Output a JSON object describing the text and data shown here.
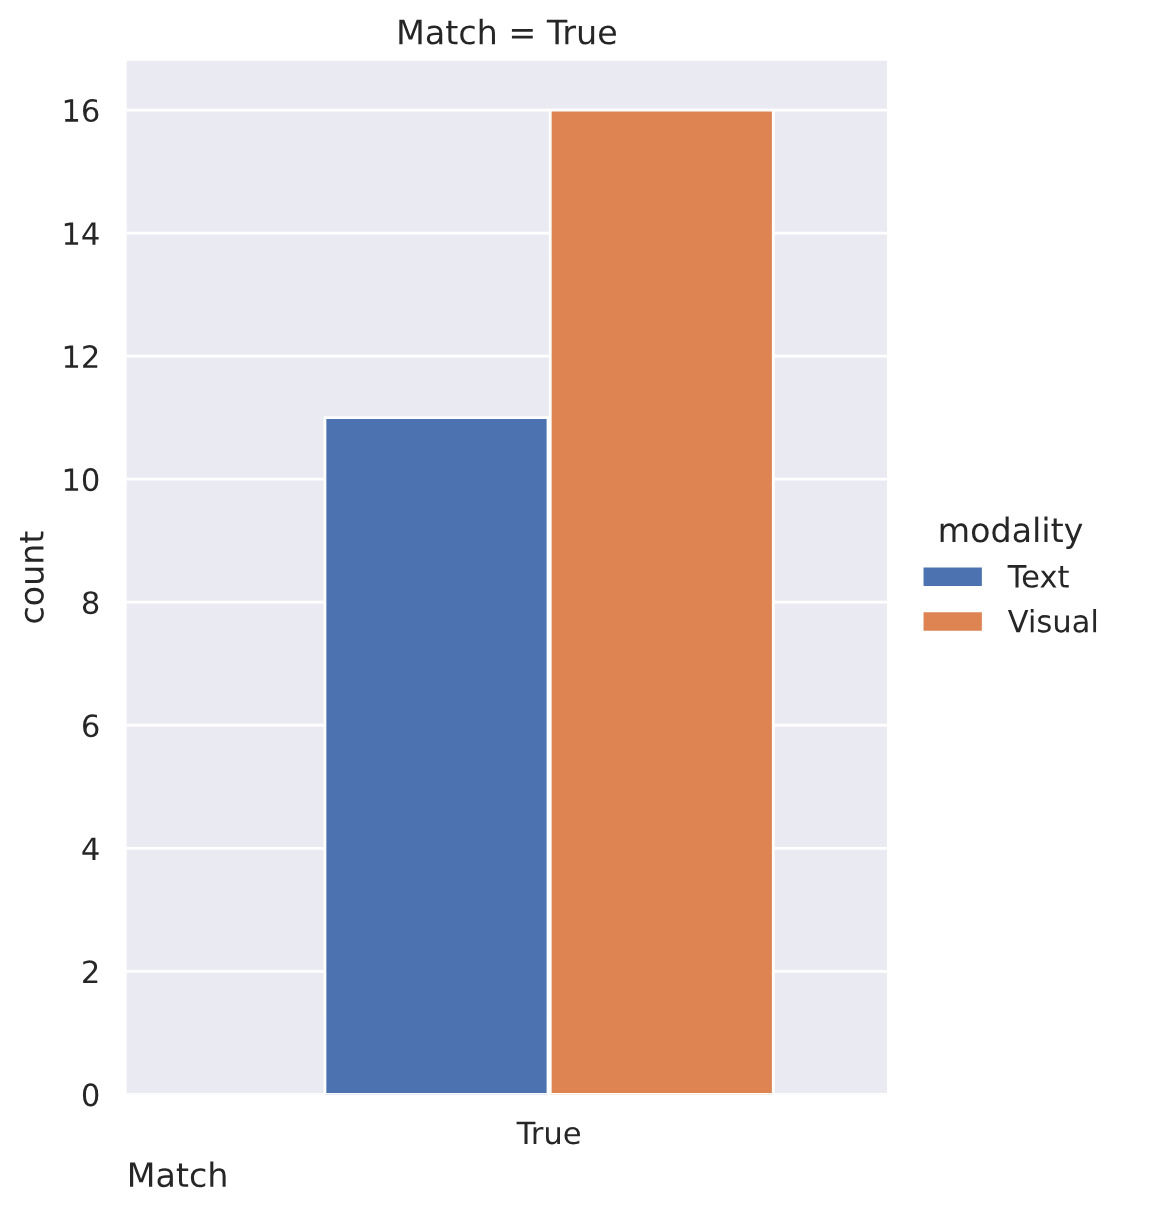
{
  "chart_data": {
    "type": "bar",
    "title": "Match = True",
    "xlabel": "Match",
    "ylabel": "count",
    "legend_title": "modality",
    "categories": [
      "True"
    ],
    "series": [
      {
        "name": "Text",
        "color": "#4c72b0",
        "values": [
          11
        ]
      },
      {
        "name": "Visual",
        "color": "#dd8452",
        "values": [
          16
        ]
      }
    ],
    "ylim": [
      0,
      16.8
    ],
    "yticks": [
      0,
      2,
      4,
      6,
      8,
      10,
      12,
      14,
      16
    ],
    "grid": "y",
    "legend": "right"
  }
}
